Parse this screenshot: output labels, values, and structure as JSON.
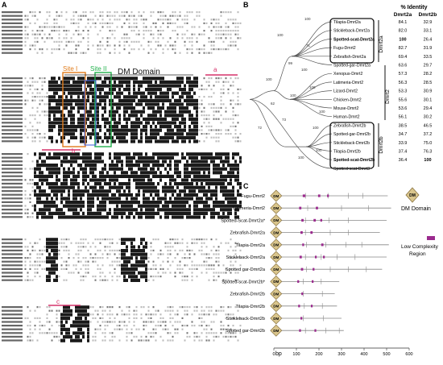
{
  "panels": {
    "a": "A",
    "b": "B",
    "c": "C"
  },
  "panelA": {
    "site1": "Site I",
    "site2": "Site II",
    "dm_domain": "DM Domain",
    "marker_a": "a",
    "marker_b": "b",
    "marker_c": "c",
    "colors": {
      "site1": "#e07b1a",
      "site2": "#22b14c",
      "marker": "#d6336c",
      "blue": "#3b5bdb"
    }
  },
  "panelB": {
    "identity_title": "% Identity",
    "col1": "Dmrt2a",
    "col2": "Dmrt2b",
    "rows": [
      {
        "name": "Tilapia-Dmrt2a",
        "a": "84.1",
        "b": "32.9"
      },
      {
        "name": "Stickleback-Dmrt2a",
        "a": "82.0",
        "b": "33.1"
      },
      {
        "name": "Spotted-scat-Dmrt2a",
        "a": "100",
        "b": "26.4"
      },
      {
        "name": "Fugu-Dmrt2",
        "a": "82.7",
        "b": "31.9"
      },
      {
        "name": "Zebrafish-Dmrt2a",
        "a": "69.4",
        "b": "33.5"
      },
      {
        "name": "Spotted-gar-Dmrt2a",
        "a": "63.6",
        "b": "29.7"
      },
      {
        "name": "Xenopus-Dmrt2",
        "a": "57.3",
        "b": "28.2"
      },
      {
        "name": "Latimeria-Dmrt2",
        "a": "56.3",
        "b": "28.5"
      },
      {
        "name": "Lizard-Dmrt2",
        "a": "53.3",
        "b": "30.9"
      },
      {
        "name": "Chicken-Dmrt2",
        "a": "55.6",
        "b": "30.1"
      },
      {
        "name": "Mouse-Dmrt2",
        "a": "53.6",
        "b": "29.4"
      },
      {
        "name": "Human-Dmrt2",
        "a": "56.1",
        "b": "30.2"
      },
      {
        "name": "Zebrafish-Dmrt2b",
        "a": "38.5",
        "b": "46.5"
      },
      {
        "name": "Spotted-gar-Dmrt2b",
        "a": "34.7",
        "b": "37.2"
      },
      {
        "name": "Stickleback-Dmrt2b",
        "a": "33.9",
        "b": "75.0"
      },
      {
        "name": "Tilapia-Dmrt2b",
        "a": "37.4",
        "b": "76.3"
      },
      {
        "name": "Spotted-scat-Dmrt2b",
        "a": "36.4",
        "b": "100"
      },
      {
        "name": "Spotted-scat-Dmrt3",
        "a": "",
        "b": ""
      }
    ],
    "group_labels": {
      "dmrt2a": "Dmrt2a",
      "dmrt2": "Dmrt2",
      "dmrt2b": "Dmrt2b"
    },
    "bootstrap": [
      "100",
      "99",
      "100",
      "62",
      "100",
      "71",
      "100",
      "73",
      "100",
      "100",
      "100",
      "72",
      "100",
      "100",
      "100"
    ]
  },
  "panelC": {
    "legend_dm": "DM Domain",
    "legend_lcr_1": "Low Complexity",
    "legend_lcr_2": "Region",
    "dm_badge": "DM",
    "axis_label": "bp",
    "ticks": [
      "0",
      "100",
      "200",
      "300",
      "400",
      "500",
      "600"
    ],
    "colors": {
      "dm_fill": "#d9c58c",
      "dm_stroke": "#8a7340",
      "lcr": "#9b2a8e"
    },
    "proteins": [
      {
        "name": "Fugu-Dmrt2",
        "length": 505,
        "lcr": [
          [
            128,
            140
          ],
          [
            196,
            206
          ],
          [
            236,
            244
          ]
        ],
        "ticks": [
          140,
          240,
          330,
          395
        ]
      },
      {
        "name": "Latimeria-Dmrt2",
        "length": 520,
        "lcr": [
          [
            112,
            122
          ],
          [
            186,
            196
          ]
        ],
        "ticks": [
          150,
          300,
          420
        ]
      },
      {
        "name": "Spotted-Scat-Dmrt2a*",
        "length": 500,
        "lcr": [
          [
            122,
            132
          ],
          [
            176,
            186
          ],
          [
            206,
            214
          ]
        ],
        "ticks": [
          140,
          245,
          330
        ]
      },
      {
        "name": "Zebrafish-Dmrt2a",
        "length": 470,
        "lcr": [
          [
            118,
            128
          ],
          [
            162,
            172
          ]
        ],
        "ticks": [
          140,
          250,
          330
        ]
      },
      {
        "name": "Tilapia-Dmrt2a",
        "length": 510,
        "lcr": [
          [
            126,
            134
          ],
          [
            210,
            220
          ]
        ],
        "ticks": [
          145,
          230,
          320,
          390
        ]
      },
      {
        "name": "Stickleback-Dmrt2a",
        "length": 500,
        "lcr": [
          [
            114,
            124
          ],
          [
            182,
            190
          ],
          [
            218,
            226
          ]
        ],
        "ticks": [
          140,
          210,
          280,
          360
        ]
      },
      {
        "name": "Spotted gar-Dmrt2a",
        "length": 480,
        "lcr": [
          [
            120,
            130
          ],
          [
            172,
            180
          ]
        ],
        "ticks": [
          145,
          250,
          330,
          410
        ]
      },
      {
        "name": "Spotted-scat-Dmrt2b*",
        "length": 290,
        "lcr": [
          [
            104,
            112
          ],
          [
            168,
            176
          ]
        ],
        "ticks": [
          130,
          210
        ]
      },
      {
        "name": "Zebrafish-Dmrt2b",
        "length": 270,
        "lcr": [
          [
            122,
            130
          ]
        ],
        "ticks": [
          130,
          215
        ]
      },
      {
        "name": "Tilapia-Dmrt2b",
        "length": 280,
        "lcr": [
          [
            108,
            116
          ],
          [
            164,
            172
          ]
        ],
        "ticks": [
          135,
          215
        ]
      },
      {
        "name": "Stickleback-Dmrt2b",
        "length": 300,
        "lcr": [
          [
            118,
            126
          ]
        ],
        "ticks": [
          130,
          220
        ]
      },
      {
        "name": "Spotted gar-Dmrt2b",
        "length": 310,
        "lcr": [
          [
            112,
            120
          ],
          [
            180,
            188
          ]
        ],
        "ticks": [
          140,
          230,
          290
        ]
      }
    ]
  }
}
